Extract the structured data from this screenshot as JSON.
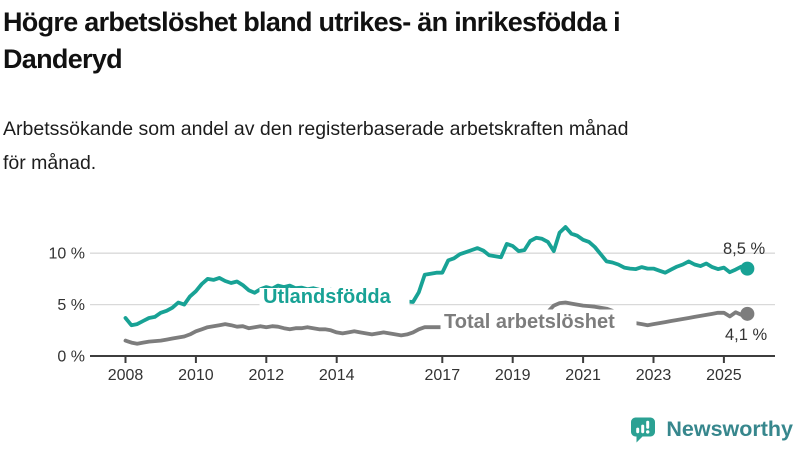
{
  "header": {
    "title_line1": "Högre arbetslöshet bland utrikes- än inrikesfödda i",
    "title_line2": "Danderyd",
    "subtitle_line1": "Arbetssökande som andel av den registerbaserade arbetskraften månad",
    "subtitle_line2": "för månad."
  },
  "chart_data": {
    "type": "line",
    "title": "Högre arbetslöshet bland utrikes- än inrikesfödda i Danderyd",
    "subtitle": "Arbetssökande som andel av den registerbaserade arbetskraften månad för månad.",
    "x_unit": "year (monthly frequency, plotted bimonthly)",
    "x_start": 2008.0,
    "x_step_years": 0.1666667,
    "x_ticks": [
      2008,
      2010,
      2012,
      2014,
      2017,
      2019,
      2021,
      2023,
      2025
    ],
    "x_range": [
      2007.0,
      2026.5
    ],
    "y_ticks": [
      {
        "value": 0,
        "label": "0 %"
      },
      {
        "value": 5,
        "label": "5 %"
      },
      {
        "value": 10,
        "label": "10 %"
      }
    ],
    "ylim": [
      0,
      13.5
    ],
    "grid": true,
    "legend_position": "inline-labels",
    "colors": {
      "grid": "#d9d9d9",
      "axis": "#3d3d3d",
      "tick_text": "#333333"
    },
    "series": [
      {
        "name": "Utlandsfödda",
        "color": "#18a295",
        "end_label": "8,5 %",
        "end_value": 8.5,
        "values": [
          3.7,
          3.0,
          3.1,
          3.4,
          3.7,
          3.8,
          4.2,
          4.4,
          4.7,
          5.2,
          5.0,
          5.8,
          6.3,
          7.0,
          7.5,
          7.4,
          7.6,
          7.3,
          7.1,
          7.25,
          6.9,
          6.4,
          6.15,
          6.5,
          6.7,
          6.55,
          6.85,
          6.7,
          6.85,
          6.6,
          6.65,
          6.5,
          6.6,
          6.45,
          6.35,
          6.45,
          6.3,
          6.2,
          6.1,
          6.2,
          6.0,
          5.95,
          5.85,
          5.7,
          5.6,
          5.5,
          5.45,
          5.4,
          5.3,
          5.25,
          6.2,
          7.9,
          8.0,
          8.1,
          8.1,
          9.3,
          9.5,
          9.9,
          10.1,
          10.3,
          10.5,
          10.25,
          9.8,
          9.7,
          9.6,
          10.9,
          10.7,
          10.2,
          10.3,
          11.2,
          11.5,
          11.4,
          11.1,
          10.2,
          12.0,
          12.55,
          11.9,
          11.7,
          11.3,
          11.1,
          10.6,
          9.9,
          9.2,
          9.1,
          8.9,
          8.6,
          8.5,
          8.45,
          8.65,
          8.5,
          8.5,
          8.3,
          8.1,
          8.4,
          8.7,
          8.9,
          9.2,
          8.9,
          8.75,
          9.0,
          8.65,
          8.45,
          8.6,
          8.15,
          8.4,
          8.7,
          8.5
        ]
      },
      {
        "name": "Total arbetslöshet",
        "color": "#7d7d7d",
        "end_label": "4,1 %",
        "end_value": 4.1,
        "values": [
          1.5,
          1.3,
          1.2,
          1.3,
          1.4,
          1.45,
          1.5,
          1.6,
          1.7,
          1.8,
          1.9,
          2.1,
          2.4,
          2.6,
          2.8,
          2.9,
          3.0,
          3.1,
          3.0,
          2.85,
          2.9,
          2.7,
          2.8,
          2.9,
          2.8,
          2.9,
          2.85,
          2.7,
          2.6,
          2.7,
          2.7,
          2.8,
          2.7,
          2.6,
          2.6,
          2.5,
          2.3,
          2.2,
          2.3,
          2.4,
          2.3,
          2.2,
          2.1,
          2.2,
          2.3,
          2.2,
          2.1,
          2.0,
          2.1,
          2.3,
          2.6,
          2.8,
          2.8,
          2.8,
          2.8,
          2.85,
          2.9,
          3.0,
          3.0,
          3.05,
          3.1,
          3.1,
          3.15,
          3.2,
          3.25,
          3.3,
          3.4,
          3.45,
          3.55,
          3.6,
          3.75,
          3.9,
          4.3,
          4.9,
          5.15,
          5.2,
          5.1,
          5.0,
          4.9,
          4.85,
          4.8,
          4.7,
          4.6,
          4.4,
          4.1,
          3.8,
          3.5,
          3.2,
          3.1,
          3.0,
          3.1,
          3.2,
          3.3,
          3.4,
          3.5,
          3.6,
          3.7,
          3.8,
          3.9,
          4.0,
          4.1,
          4.2,
          4.2,
          3.85,
          4.25,
          4.0,
          4.1
        ]
      }
    ]
  },
  "footer": {
    "brand": "Newsworthy",
    "brand_color": "#37878d",
    "icon": "newsworthy-bar-chart-bubble-icon",
    "icon_color": "#2ba193"
  }
}
